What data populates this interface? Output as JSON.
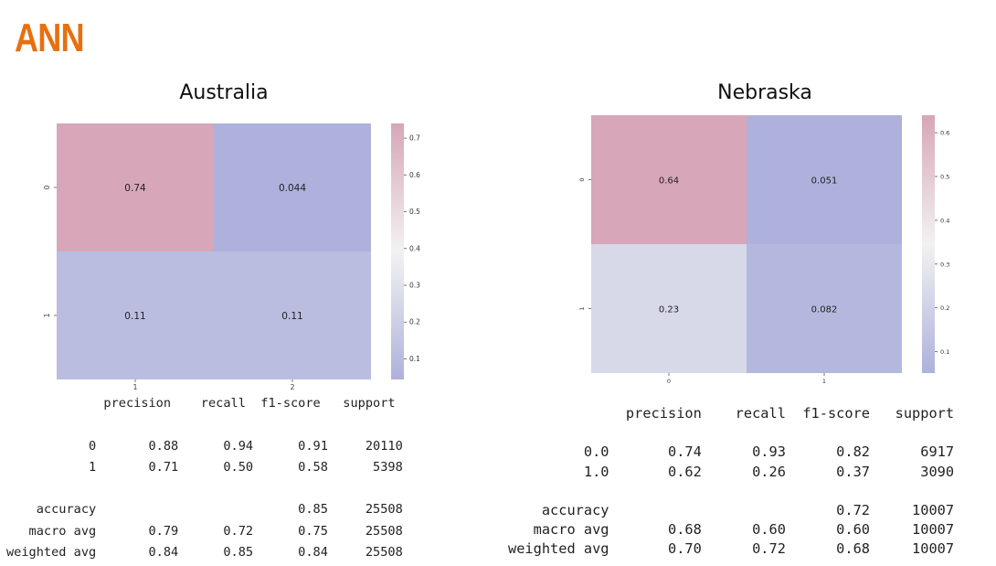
{
  "slide": {
    "title": "ANN",
    "title_color": "#E8700F"
  },
  "chart_data": [
    {
      "type": "heatmap",
      "title": "Australia",
      "x_tick_labels": [
        "1",
        "2"
      ],
      "y_tick_labels": [
        "0",
        "1"
      ],
      "values": [
        [
          0.74,
          0.044
        ],
        [
          0.11,
          0.11
        ]
      ],
      "value_labels": [
        [
          "0.74",
          "0.044"
        ],
        [
          "0.11",
          "0.11"
        ]
      ],
      "colorbar": {
        "range": [
          0.044,
          0.74
        ],
        "ticks": [
          "0.1",
          "0.2",
          "0.3",
          "0.4",
          "0.5",
          "0.6",
          "0.7"
        ]
      },
      "colormap": {
        "low": "#AEB1DC",
        "mid": "#F2F2F2",
        "high": "#D7A6B8"
      }
    },
    {
      "type": "heatmap",
      "title": "Nebraska",
      "x_tick_labels": [
        "0",
        "1"
      ],
      "y_tick_labels": [
        "0",
        "1"
      ],
      "values": [
        [
          0.64,
          0.051
        ],
        [
          0.23,
          0.082
        ]
      ],
      "value_labels": [
        [
          "0.64",
          "0.051"
        ],
        [
          "0.23",
          "0.082"
        ]
      ],
      "colorbar": {
        "range": [
          0.051,
          0.64
        ],
        "ticks": [
          "0.1",
          "0.2",
          "0.3",
          "0.4",
          "0.5",
          "0.6"
        ]
      },
      "colormap": {
        "low": "#AEB1DC",
        "mid": "#F2F2F2",
        "high": "#D7A6B8"
      }
    }
  ],
  "reports": [
    {
      "text": "             precision    recall  f1-score   support\n\n           0       0.88      0.94      0.91     20110\n           1       0.71      0.50      0.58      5398\n\n    accuracy                           0.85     25508\n   macro avg       0.79      0.72      0.75     25508\nweighted avg       0.84      0.85      0.84     25508"
    },
    {
      "text": "              precision    recall  f1-score   support\n\n         0.0       0.74      0.93      0.82      6917\n         1.0       0.62      0.26      0.37      3090\n\n    accuracy                           0.72     10007\n   macro avg       0.68      0.60      0.60     10007\nweighted avg       0.70      0.72      0.68     10007"
    }
  ]
}
